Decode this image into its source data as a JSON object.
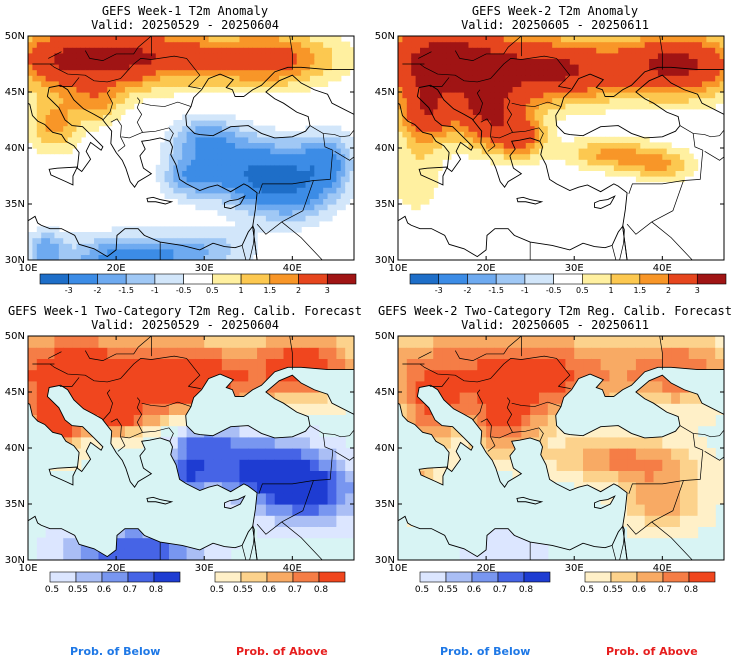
{
  "panels": [
    {
      "title": "GEFS Week-1 T2m Anomaly",
      "valid": "Valid: 20250529 - 20250604",
      "type": "anomaly",
      "scenario": "w1a"
    },
    {
      "title": "GEFS Week-2 T2m Anomaly",
      "valid": "Valid: 20250605 - 20250611",
      "type": "anomaly",
      "scenario": "w2a"
    },
    {
      "title": "GEFS Week-1 Two-Category T2m Reg. Calib. Forecast",
      "valid": "Valid: 20250529 - 20250604",
      "type": "probability",
      "scenario": "w1p"
    },
    {
      "title": "GEFS Week-2 Two-Category T2m Reg. Calib. Forecast",
      "valid": "Valid: 20250605 - 20250611",
      "type": "probability",
      "scenario": "w2p"
    }
  ],
  "axes": {
    "lat_labels": [
      "50N",
      "45N",
      "40N",
      "35N",
      "30N"
    ],
    "lon_labels": [
      "10E",
      "20E",
      "30E",
      "40E"
    ]
  },
  "anomaly_colorbar": {
    "labels": [
      "-3",
      "-2",
      "-1.5",
      "-1",
      "-0.5",
      "0.5",
      "1",
      "1.5",
      "2",
      "3"
    ],
    "colors": [
      "#1e6ec8",
      "#3c8ce6",
      "#6eaaf0",
      "#a0c8f5",
      "#d2e6fa",
      "#ffffff",
      "#fff0a0",
      "#fcc850",
      "#f89628",
      "#e6461e",
      "#a01414"
    ]
  },
  "prob_below": {
    "labels": [
      "0.5",
      "0.55",
      "0.6",
      "0.7",
      "0.8"
    ],
    "colors": [
      "#dce6ff",
      "#aabef5",
      "#7896f0",
      "#4664e6",
      "#1e3cd2"
    ],
    "caption": "Prob. of Below",
    "caption_color": "#1e78e6"
  },
  "prob_above": {
    "labels": [
      "0.5",
      "0.55",
      "0.6",
      "0.7",
      "0.8"
    ],
    "colors": [
      "#fff0c8",
      "#fcd28c",
      "#f8aa64",
      "#f57d46",
      "#f0461e"
    ],
    "caption": "Prob. of Above",
    "caption_color": "#e61e1e"
  },
  "sea_color_prob": "#d8f4f4"
}
